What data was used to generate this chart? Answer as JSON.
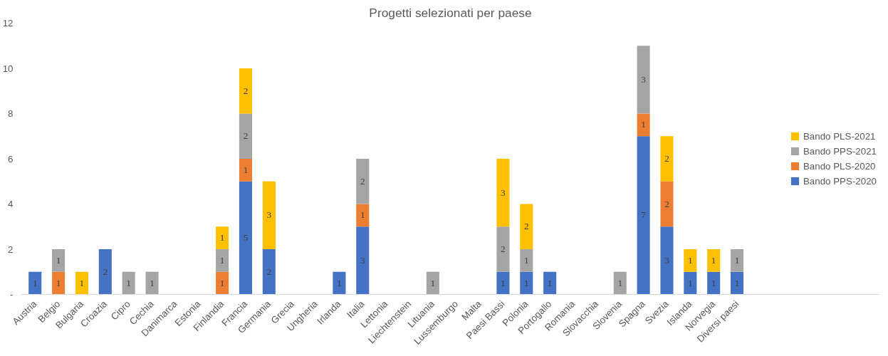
{
  "chart_data": {
    "type": "bar",
    "stacked": true,
    "title": "Progetti selezionati per paese",
    "categories": [
      "Austria",
      "Belgio",
      "Bulgaria",
      "Croazia",
      "Cipro",
      "Cechia",
      "Danimarca",
      "Estonia",
      "Finlandia",
      "Francia",
      "Germania",
      "Grecia",
      "Ungheria",
      "Irlanda",
      "Italia",
      "Lettonia",
      "Liechtenstein",
      "Lituania",
      "Lussemburgo",
      "Malta",
      "Paesi Bassi",
      "Polonia",
      "Portogallo",
      "Romania",
      "Slovacchia",
      "Slovenia",
      "Spagna",
      "Svezia",
      "Islanda",
      "Norvegia",
      "Diversi paesi"
    ],
    "series": [
      {
        "name": "Bando PPS-2020",
        "color": "#4472c4",
        "values": [
          1,
          0,
          0,
          2,
          0,
          0,
          0,
          0,
          0,
          5,
          2,
          0,
          0,
          1,
          3,
          0,
          0,
          0,
          0,
          0,
          1,
          1,
          1,
          0,
          0,
          0,
          7,
          3,
          1,
          1,
          1
        ],
        "value_labels": [
          "1",
          null,
          null,
          "2",
          null,
          null,
          null,
          null,
          null,
          "5",
          "2",
          null,
          null,
          "1",
          "3",
          null,
          null,
          null,
          null,
          null,
          "1",
          "1",
          "1",
          null,
          null,
          null,
          "7",
          "3",
          "1",
          "1",
          "1"
        ]
      },
      {
        "name": "Bando PLS-2020",
        "color": "#ed7d31",
        "values": [
          0,
          1,
          0,
          0,
          0,
          0,
          0,
          0,
          1,
          1,
          0,
          0,
          0,
          0,
          1,
          0,
          0,
          0,
          0,
          0,
          0,
          0,
          0,
          0,
          0,
          0,
          1,
          2,
          0,
          0,
          0
        ],
        "value_labels": [
          null,
          "1",
          null,
          null,
          null,
          null,
          null,
          null,
          "1",
          "1",
          null,
          null,
          null,
          null,
          "1",
          null,
          null,
          null,
          null,
          null,
          null,
          null,
          null,
          null,
          null,
          null,
          "1",
          "2",
          null,
          null,
          null
        ]
      },
      {
        "name": "Bando PPS-2021",
        "color": "#a5a5a5",
        "values": [
          0,
          1,
          0,
          0,
          1,
          1,
          0,
          0,
          1,
          2,
          0,
          0,
          0,
          0,
          2,
          0,
          0,
          1,
          0,
          0,
          2,
          1,
          0,
          0,
          0,
          1,
          3,
          0,
          0,
          0,
          1
        ],
        "value_labels": [
          null,
          "1",
          null,
          null,
          "1",
          "1",
          null,
          null,
          "1",
          "2",
          null,
          null,
          null,
          null,
          "2",
          null,
          null,
          "1",
          null,
          null,
          "2",
          "1",
          null,
          null,
          null,
          "1",
          "3",
          null,
          null,
          null,
          "1"
        ]
      },
      {
        "name": "Bando PLS-2021",
        "color": "#ffc000",
        "values": [
          0,
          0,
          1,
          0,
          0,
          0,
          0,
          0,
          1,
          2,
          3,
          0,
          0,
          0,
          0,
          0,
          0,
          0,
          0,
          0,
          3,
          2,
          0,
          0,
          0,
          0,
          0,
          2,
          1,
          1,
          0
        ],
        "value_labels": [
          null,
          null,
          "1",
          null,
          null,
          null,
          null,
          null,
          "1",
          "2",
          "3",
          null,
          null,
          null,
          null,
          null,
          null,
          null,
          null,
          null,
          "3",
          "2",
          null,
          null,
          null,
          null,
          null,
          "2",
          "1",
          "1",
          null
        ]
      }
    ],
    "ylim": [
      0,
      12
    ],
    "yticks": [
      {
        "value": 0,
        "label": "-"
      },
      2,
      4,
      6,
      8,
      10,
      12
    ],
    "legend": "right"
  }
}
